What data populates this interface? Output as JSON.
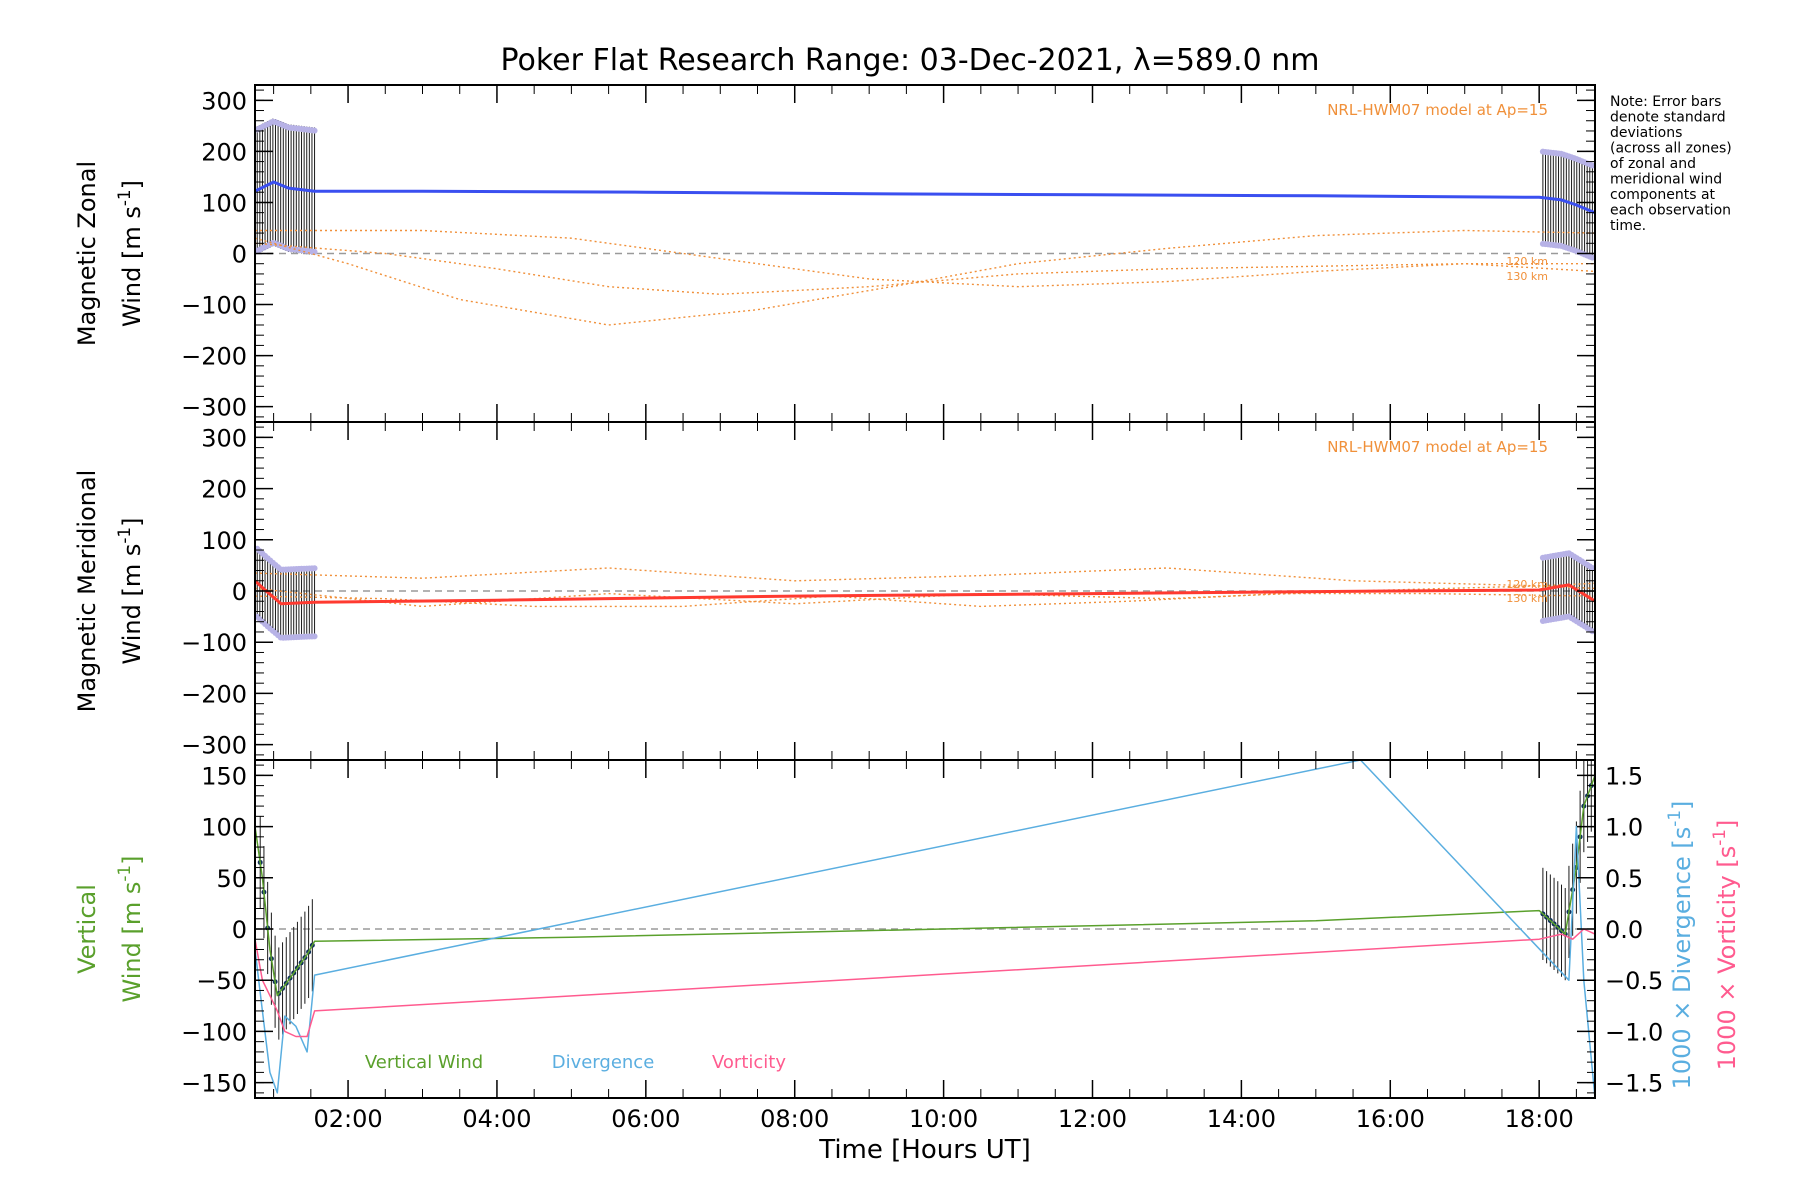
{
  "title": "Poker Flat Research Range: 03-Dec-2021, λ=589.0 nm",
  "note_lines": [
    "Note: Error bars",
    "denote standard",
    "deviations",
    "(across all zones)",
    "of zonal and",
    "meridional wind",
    "components at",
    "each observation",
    "time."
  ],
  "colors": {
    "zonal": "#3a4ff0",
    "meridional": "#ff3a30",
    "model": "#f0903a",
    "errorbars": "#1a1a1a",
    "zone_spread": "#b7b2e6",
    "vertical": "#5aa02c",
    "divergence": "#5aaee0",
    "vorticity": "#ff5b8f",
    "zero_line": "#9a9a9a",
    "dots": "#10305a"
  },
  "chart_data": [
    {
      "type": "line",
      "panel": "zonal",
      "ylabel_line1": "Magnetic Zonal",
      "ylabel_line2": "Wind [m s",
      "ylabel_exp": "-1",
      "ylabel_close": "]",
      "ylim": [
        -330,
        330
      ],
      "yticks": [
        -300,
        -200,
        -100,
        0,
        100,
        200,
        300
      ],
      "model_label": "NRL-HWM07 model at Ap=15",
      "model_alt_labels": [
        "120 km",
        "130 km"
      ],
      "series": [
        {
          "kind": "measured",
          "x": [
            0.75,
            1.0,
            1.2,
            1.55,
            3.0,
            6.0,
            9.0,
            12.0,
            15.0,
            18.0,
            18.3,
            18.5,
            18.75
          ],
          "y": [
            122,
            140,
            128,
            122,
            122,
            120,
            117,
            115,
            113,
            110,
            105,
            95,
            80
          ]
        },
        {
          "kind": "model",
          "x": [
            0.75,
            2.5,
            4.0,
            5.5,
            7.0,
            9.0,
            11.0,
            13.0,
            15.0,
            17.0,
            18.75
          ],
          "y": [
            20,
            0,
            -30,
            -65,
            -80,
            -65,
            -40,
            -30,
            -25,
            -20,
            -20
          ]
        },
        {
          "kind": "model",
          "x": [
            0.75,
            2.0,
            3.5,
            5.5,
            7.5,
            9.5,
            11.0,
            13.0,
            15.0,
            17.0,
            18.75
          ],
          "y": [
            30,
            -20,
            -90,
            -140,
            -110,
            -60,
            -20,
            10,
            35,
            45,
            40
          ]
        },
        {
          "kind": "model",
          "x": [
            0.75,
            3.0,
            5.0,
            7.0,
            9.0,
            11.0,
            13.0,
            15.0,
            17.0,
            18.75
          ],
          "y": [
            45,
            45,
            30,
            -10,
            -50,
            -65,
            -55,
            -35,
            -20,
            -35
          ]
        }
      ]
    },
    {
      "type": "line",
      "panel": "meridional",
      "ylabel_line1": "Magnetic Meridional",
      "ylabel_line2": "Wind [m s",
      "ylabel_exp": "-1",
      "ylabel_close": "]",
      "ylim": [
        -330,
        330
      ],
      "yticks": [
        -300,
        -200,
        -100,
        0,
        100,
        200,
        300
      ],
      "model_label": "NRL-HWM07 model at Ap=15",
      "model_alt_labels": [
        "120 km",
        "130 km"
      ],
      "series": [
        {
          "kind": "measured",
          "x": [
            0.75,
            0.9,
            1.1,
            1.55,
            4.0,
            8.0,
            12.0,
            16.0,
            18.0,
            18.4,
            18.75
          ],
          "y": [
            20,
            0,
            -25,
            -22,
            -18,
            -10,
            -5,
            0,
            2,
            12,
            -20
          ]
        },
        {
          "kind": "model",
          "x": [
            0.75,
            3.0,
            5.5,
            8.0,
            10.5,
            13.0,
            15.5,
            18.0,
            18.75
          ],
          "y": [
            35,
            25,
            45,
            20,
            30,
            45,
            20,
            10,
            15
          ]
        },
        {
          "kind": "model",
          "x": [
            0.75,
            3.0,
            5.5,
            8.0,
            10.5,
            13.0,
            15.5,
            18.0,
            18.75
          ],
          "y": [
            5,
            -30,
            -5,
            -25,
            -5,
            -15,
            0,
            10,
            5
          ]
        },
        {
          "kind": "model",
          "x": [
            0.75,
            2.5,
            4.5,
            6.5,
            8.5,
            10.5,
            12.5,
            14.5,
            16.5,
            18.75
          ],
          "y": [
            -10,
            -15,
            -30,
            -30,
            -10,
            -30,
            -20,
            -5,
            -5,
            -10
          ]
        }
      ]
    },
    {
      "type": "line",
      "panel": "vertical",
      "ylabel_line1": "Vertical",
      "ylabel_line2": "Wind [m s",
      "ylabel_exp": "-1",
      "ylabel_close": "]",
      "ylim": [
        -165,
        165
      ],
      "yticks": [
        -150,
        -100,
        -50,
        0,
        50,
        100,
        150
      ],
      "y2lim": [
        -1.65,
        1.65
      ],
      "y2ticks": [
        -1.5,
        -1.0,
        -0.5,
        0.0,
        0.5,
        1.0,
        1.5
      ],
      "y2tick_labels": [
        "−1.5",
        "−1.0",
        "−0.5",
        "0.0",
        "0.5",
        "1.0",
        "1.5"
      ],
      "y2label_div": "1000 × Divergence [s",
      "y2label_vort": "1000 × Vorticity [s",
      "y2label_exp": "-1",
      "y2label_close": "]",
      "legend": [
        "Vertical Wind",
        "Divergence",
        "Vorticity"
      ],
      "series": [
        {
          "name": "Vertical Wind",
          "axis": "left",
          "x": [
            0.75,
            0.85,
            0.95,
            1.05,
            1.15,
            1.3,
            1.45,
            1.55,
            5.0,
            10.0,
            15.0,
            18.0,
            18.2,
            18.35,
            18.5,
            18.6,
            18.75
          ],
          "y": [
            100,
            50,
            -20,
            -65,
            -55,
            -40,
            -25,
            -12,
            -8,
            0,
            8,
            18,
            5,
            -5,
            60,
            120,
            150
          ]
        },
        {
          "name": "Divergence",
          "axis": "right",
          "x": [
            0.75,
            0.85,
            0.95,
            1.05,
            1.15,
            1.3,
            1.45,
            1.55,
            15.6,
            18.4,
            18.5,
            18.6,
            18.75
          ],
          "y": [
            -0.2,
            -0.8,
            -1.4,
            -1.6,
            -0.85,
            -0.95,
            -1.2,
            -0.45,
            1.65,
            -0.5,
            1.0,
            -0.5,
            -1.65
          ]
        },
        {
          "name": "Vorticity",
          "axis": "right",
          "x": [
            0.75,
            0.85,
            0.95,
            1.05,
            1.15,
            1.3,
            1.45,
            1.55,
            18.0,
            18.3,
            18.45,
            18.6,
            18.75
          ],
          "y": [
            -0.1,
            -0.5,
            -0.65,
            -0.8,
            -1.0,
            -1.05,
            -1.05,
            -0.8,
            -0.1,
            -0.05,
            -0.1,
            0.0,
            -0.05
          ]
        }
      ]
    }
  ],
  "xaxis": {
    "xlim": [
      0.75,
      18.75
    ],
    "xticks": [
      2,
      4,
      6,
      8,
      10,
      12,
      14,
      16,
      18
    ],
    "xtick_labels": [
      "02:00",
      "04:00",
      "06:00",
      "08:00",
      "10:00",
      "12:00",
      "14:00",
      "16:00",
      "18:00"
    ],
    "xlabel": "Time [Hours UT]"
  }
}
